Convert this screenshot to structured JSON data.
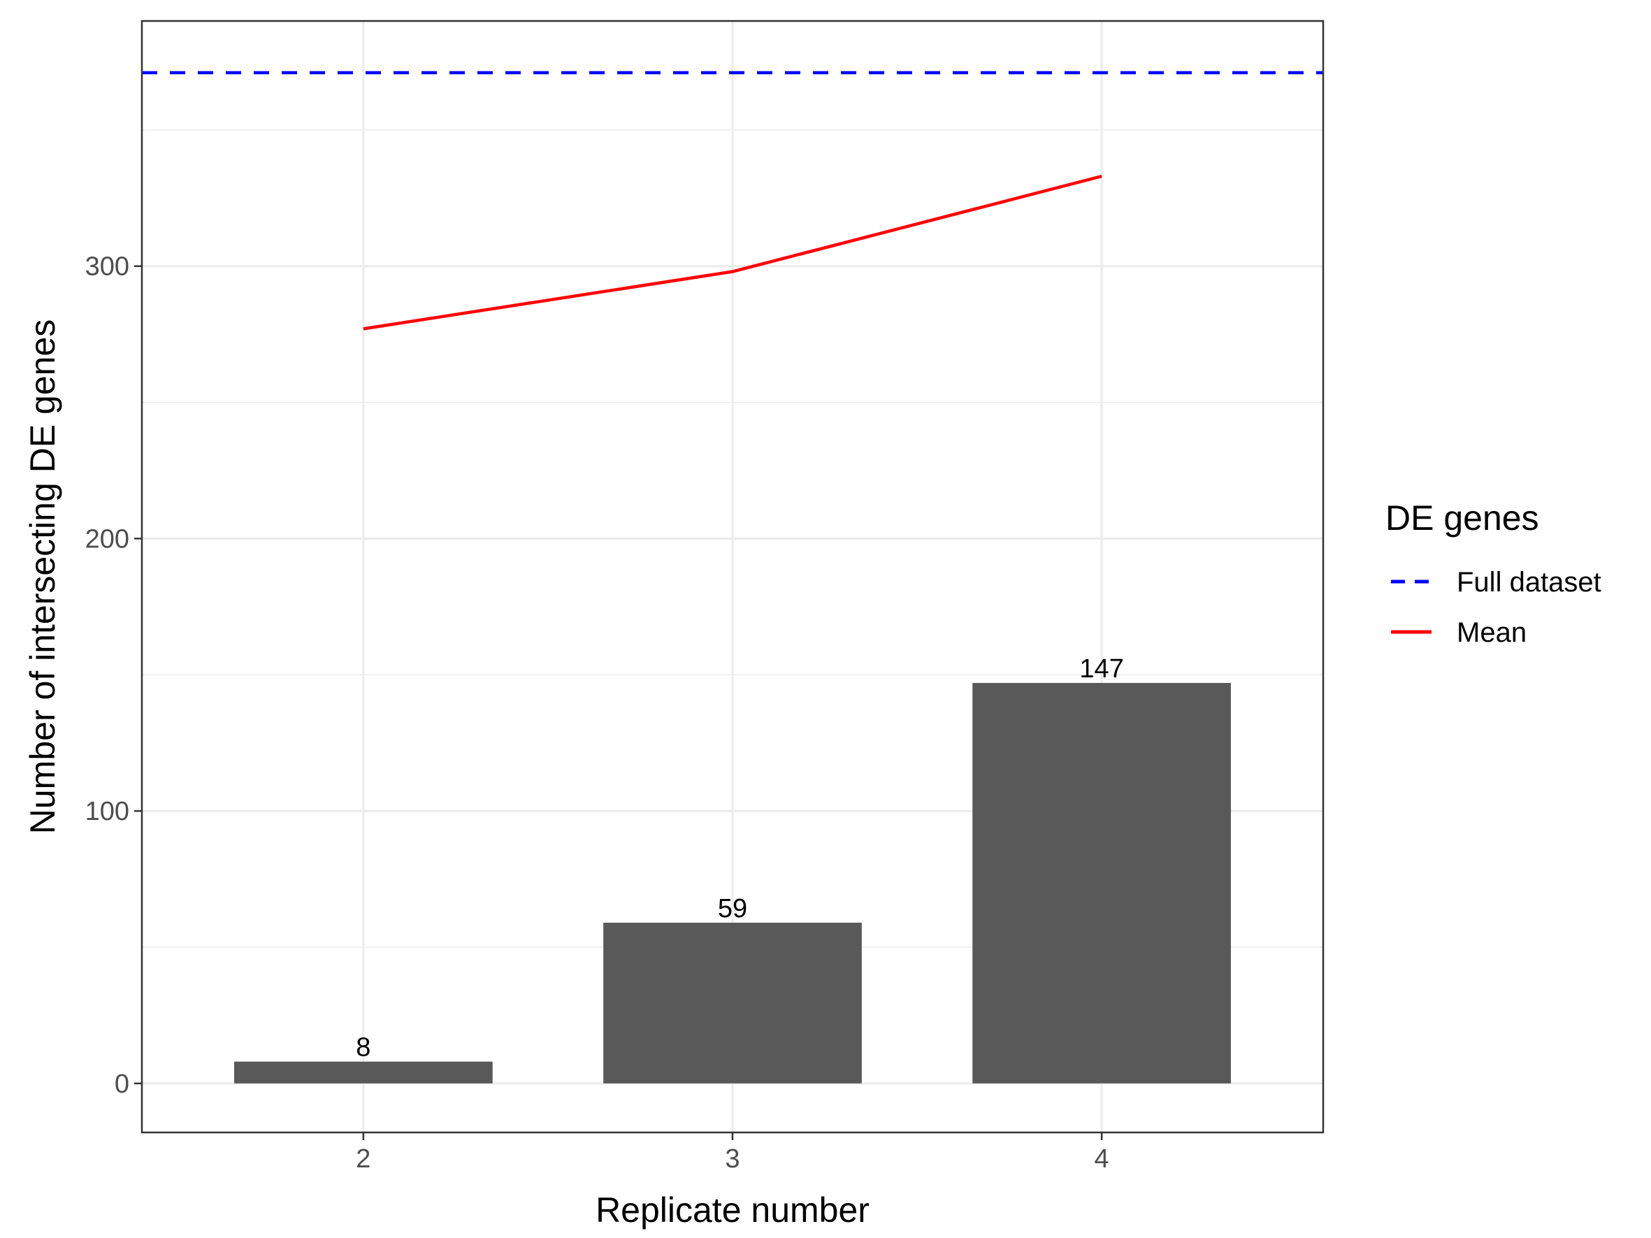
{
  "chart_data": {
    "type": "bar",
    "categories": [
      "2",
      "3",
      "4"
    ],
    "values": [
      8,
      59,
      147
    ],
    "data_labels": [
      "8",
      "59",
      "147"
    ],
    "series": [
      {
        "name": "Mean",
        "type": "line",
        "values": [
          277,
          298,
          333
        ],
        "color": "#ff0000",
        "style": "solid"
      },
      {
        "name": "Full dataset",
        "type": "hline",
        "value": 371,
        "color": "#0000ff",
        "style": "dashed"
      }
    ],
    "bar_color": "#595959",
    "title": "",
    "xlabel": "Replicate number",
    "ylabel": "Number of intersecting DE genes",
    "ylim": [
      -18,
      390
    ],
    "yticks": [
      0,
      100,
      200,
      300
    ],
    "ytick_labels": [
      "0",
      "100",
      "200",
      "300"
    ],
    "grid": true,
    "legend": {
      "title": "DE genes",
      "position": "right",
      "items": [
        {
          "label": "Full dataset",
          "color": "#0000ff",
          "style": "dashed"
        },
        {
          "label": "Mean",
          "color": "#ff0000",
          "style": "solid"
        }
      ]
    }
  }
}
